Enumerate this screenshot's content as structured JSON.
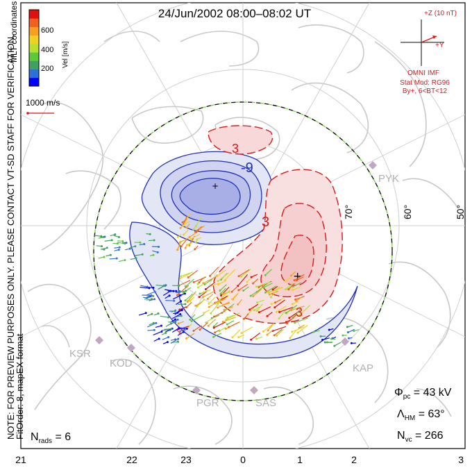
{
  "title": "24/Jun/2002 08:00–08:02 UT",
  "coordinates_label": "MLT coordinates",
  "colorbar": {
    "title": "Vel [m/s]",
    "ticks": [
      "600",
      "400",
      "200"
    ],
    "colors": [
      "#0000ff",
      "#2f6fd8",
      "#3fa060",
      "#5ec83a",
      "#b8e030",
      "#f0d020",
      "#f5a020",
      "#f06020",
      "#e01010"
    ]
  },
  "scale_vector_label": "1000 m/s",
  "imf": {
    "z_label": "+Z (10 nT)",
    "y_label": "+Y",
    "source": "OMNI IMF",
    "stat_mod": "Stat Mod: RG96",
    "condition": "By+, 6<BT<12"
  },
  "contour_labels": [
    "-9",
    "3",
    "3",
    "3"
  ],
  "latitude_labels": [
    "70°",
    "60°",
    "50°"
  ],
  "stations": [
    "PYK",
    "KSR",
    "KOD",
    "PGR",
    "SAS",
    "KAP"
  ],
  "side_note_1": "NOTE: FOR PREVIEW PURPOSES ONLY. PLEASE CONTACT VT-SD STAFF FOR VERIFICATION.",
  "side_note_2": "FitOrder: 8, mapEX format",
  "stats": {
    "phi_pc": "Φ",
    "phi_pc_sub": "pc",
    "phi_pc_value": " = 43 kV",
    "lambda_hm": "Λ",
    "lambda_hm_sub": "HM",
    "lambda_hm_value": " = 63°",
    "n_vc": "N",
    "n_vc_sub": "vc",
    "n_vc_value": " = 266",
    "n_rads": "N",
    "n_rads_sub": "rads",
    "n_rads_value": " = 6"
  },
  "mlt_axis": [
    "21",
    "22",
    "23",
    "0",
    "1",
    "2",
    "3"
  ],
  "colors": {
    "negative_cell": "#1f2fb8",
    "positive_cell": "#d81818",
    "land": "#c8c8c8",
    "grid": "#cfcfcf",
    "boundary_green": "#7ad040",
    "imf_red": "#d81818"
  }
}
